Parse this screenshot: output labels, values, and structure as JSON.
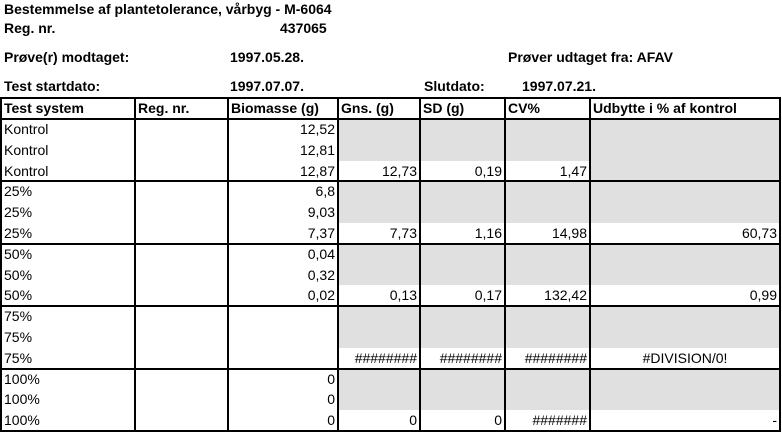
{
  "header": {
    "title": "Bestemmelse af plantetolerance, vårbyg - M-6064",
    "reg_label": "Reg. nr.",
    "reg_value": "437065",
    "received_label": "Prøve(r) modtaget:",
    "received_value": "1997.05.28.",
    "sampled_from": "Prøver udtaget fra: AFAV",
    "start_label": "Test startdato:",
    "start_value": "1997.07.07.",
    "end_label": "Slutdato:",
    "end_value": "1997.07.21."
  },
  "table": {
    "columns": [
      "Test system",
      "Reg. nr.",
      "Biomasse (g)",
      "Gns. (g)",
      "SD (g)",
      "CV%",
      "Udbytte i % af kontrol"
    ],
    "rows": [
      [
        "Kontrol",
        null,
        "12,52",
        null,
        null,
        null,
        null
      ],
      [
        "Kontrol",
        null,
        "12,81",
        null,
        null,
        null,
        null
      ],
      [
        "Kontrol",
        null,
        "12,87",
        "12,73",
        "0,19",
        "1,47",
        null
      ],
      [
        "25%",
        null,
        "6,8",
        null,
        null,
        null,
        null
      ],
      [
        "25%",
        null,
        "9,03",
        null,
        null,
        null,
        null
      ],
      [
        "25%",
        null,
        "7,37",
        "7,73",
        "1,16",
        "14,98",
        "60,73"
      ],
      [
        "50%",
        null,
        "0,04",
        null,
        null,
        null,
        null
      ],
      [
        "50%",
        null,
        "0,32",
        null,
        null,
        null,
        null
      ],
      [
        "50%",
        null,
        "0,02",
        "0,13",
        "0,17",
        "132,42",
        "0,99"
      ],
      [
        "75%",
        null,
        null,
        null,
        null,
        null,
        null
      ],
      [
        "75%",
        null,
        null,
        null,
        null,
        null,
        null
      ],
      [
        "75%",
        null,
        null,
        "########",
        "########",
        "########",
        "#DIVISION/0!"
      ],
      [
        "100%",
        null,
        "0",
        null,
        null,
        null,
        null
      ],
      [
        "100%",
        null,
        "0",
        null,
        null,
        null,
        null
      ],
      [
        "100%",
        null,
        "0",
        "0",
        "0",
        "#######",
        "-"
      ]
    ]
  }
}
